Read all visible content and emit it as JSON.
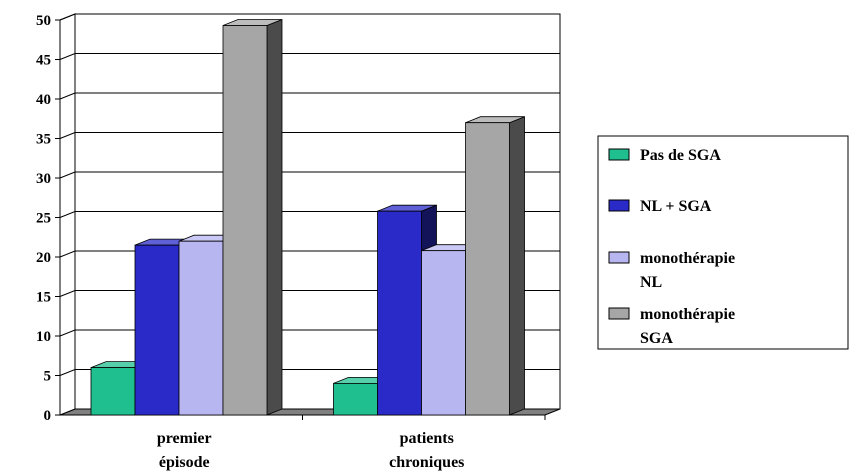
{
  "chart_data": {
    "type": "bar",
    "categories": [
      [
        "premier",
        "épisode"
      ],
      [
        "patients",
        "chroniques"
      ]
    ],
    "series": [
      {
        "name": "Pas de SGA",
        "name_lines": [
          "Pas de SGA"
        ],
        "values": [
          6,
          4
        ],
        "color": "#1fbf8f"
      },
      {
        "name": "NL + SGA",
        "name_lines": [
          "NL + SGA"
        ],
        "values": [
          21.5,
          25.8
        ],
        "color": "#2a2ac8"
      },
      {
        "name": "monothérapie NL",
        "name_lines": [
          "monothérapie",
          "NL"
        ],
        "values": [
          22,
          20.8
        ],
        "color": "#b8b6f0"
      },
      {
        "name": "monothérapie SGA",
        "name_lines": [
          "monothérapie",
          "SGA"
        ],
        "values": [
          49.3,
          37
        ],
        "color": "#a6a6a6"
      }
    ],
    "y_ticks": [
      0,
      5,
      10,
      15,
      20,
      25,
      30,
      35,
      40,
      45,
      50
    ],
    "ylim": [
      0,
      50
    ],
    "grid": true,
    "legend_position": "right",
    "title": "",
    "xlabel": "",
    "ylabel": ""
  }
}
